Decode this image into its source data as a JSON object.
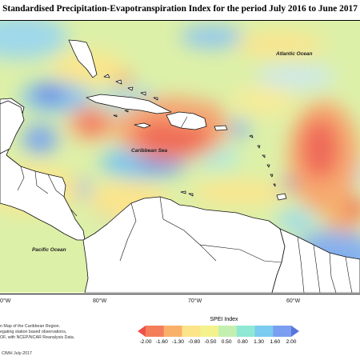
{
  "title": "Standardised Precipitation-Evapotranspiration Index for the period July 2016 to June 2017",
  "labels": {
    "atlantic": "Atlantic Ocean",
    "caribbean": "Caribbean Sea",
    "pacific": "Pacific Ocean"
  },
  "longitudes": [
    "0°W",
    "80°W",
    "70°W",
    "60°W"
  ],
  "legend": {
    "title": "SPEI Index",
    "ticks": [
      "-2.00",
      "-1.60",
      "-1.30",
      "-0.80",
      "-0.50",
      "0.50",
      "0.80",
      "1.30",
      "1.60",
      "2.00"
    ],
    "colors": [
      "#f0504a",
      "#f57e5a",
      "#f9b16a",
      "#fbe48a",
      "#f3f28c",
      "#c3f0b0",
      "#8ee8d4",
      "#7ccbf0",
      "#7a9ff0",
      "#5a74de"
    ]
  },
  "footnotes": {
    "line1": "n Map of the Caribbean Region.",
    "line2": "egating station based observations,",
    "line3": "OF, with NCEP/NCAR Reanalysis Data.",
    "credit": "CIMH July-2017"
  }
}
